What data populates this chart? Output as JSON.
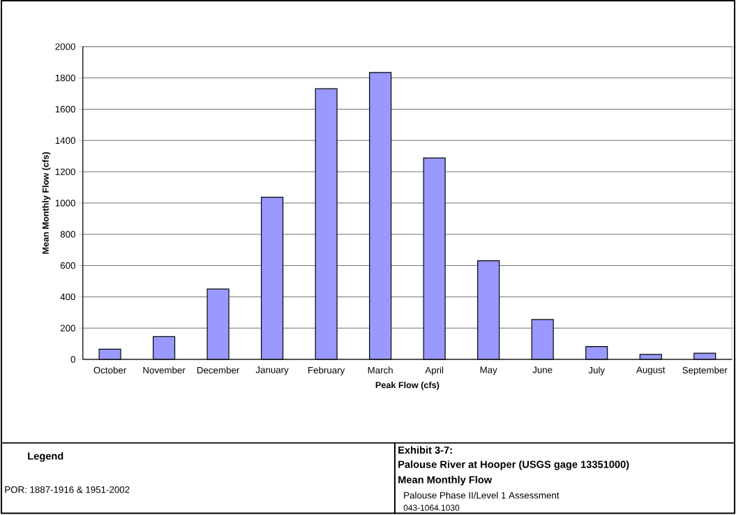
{
  "chart_data": {
    "type": "bar",
    "categories": [
      "October",
      "November",
      "December",
      "January",
      "February",
      "March",
      "April",
      "May",
      "June",
      "July",
      "August",
      "September"
    ],
    "values": [
      65,
      146,
      450,
      1037,
      1731,
      1835,
      1288,
      631,
      255,
      82,
      32,
      40
    ],
    "color": "#9999ff",
    "ylim": [
      0,
      2000
    ],
    "yticks": [
      0,
      200,
      400,
      600,
      800,
      1000,
      1200,
      1400,
      1600,
      1800,
      2000
    ],
    "grid": "y",
    "xlabel": "Peak Flow (cfs)",
    "ylabel": "Mean Monthly Flow (cfs)",
    "annotations": [
      "Legend",
      "POR: 1887-1916 & 1951-2002",
      "Exhibit 3-7:",
      "Palouse River at Hooper (USGS gage 13351000)",
      "Mean Monthly Flow",
      "Palouse Phase II/Level 1 Assessment",
      "043-1064.1030"
    ]
  }
}
